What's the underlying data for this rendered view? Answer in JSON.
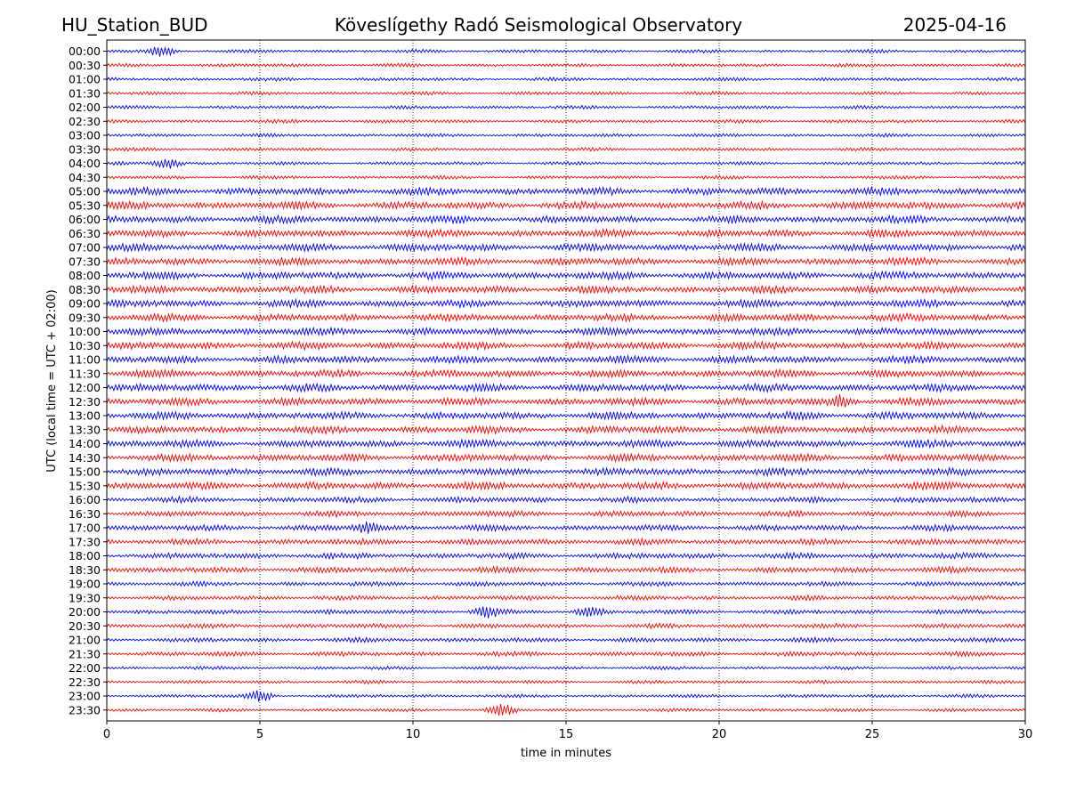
{
  "header": {
    "station": "HU_Station_BUD",
    "title": "Köveslígethy Radó Seismological Observatory",
    "date": "2025-04-16"
  },
  "chart_data": {
    "type": "line",
    "title": "Köveslígethy Radó Seismological Observatory",
    "xlabel": "time in minutes",
    "ylabel": "UTC (local time = UTC + 02:00)",
    "xlim": [
      0,
      30
    ],
    "xticks": [
      "0",
      "5",
      "10",
      "15",
      "20",
      "25",
      "30"
    ],
    "grid": "vertical dotted at 5-minute intervals",
    "rows": [
      "00:00",
      "00:30",
      "01:00",
      "01:30",
      "02:00",
      "02:30",
      "03:00",
      "03:30",
      "04:00",
      "04:30",
      "05:00",
      "05:30",
      "06:00",
      "06:30",
      "07:00",
      "07:30",
      "08:00",
      "08:30",
      "09:00",
      "09:30",
      "10:00",
      "10:30",
      "11:00",
      "11:30",
      "12:00",
      "12:30",
      "13:00",
      "13:30",
      "14:00",
      "14:30",
      "15:00",
      "15:30",
      "16:00",
      "16:30",
      "17:00",
      "17:30",
      "18:00",
      "18:30",
      "19:00",
      "19:30",
      "20:00",
      "20:30",
      "21:00",
      "21:30",
      "22:00",
      "22:30",
      "23:00",
      "23:30"
    ],
    "row_colors": [
      "#0000ff",
      "#ff0000"
    ],
    "events": [
      {
        "row": "00:00",
        "minute": 1.8
      },
      {
        "row": "04:00",
        "minute": 2.0
      },
      {
        "row": "12:30",
        "minute": 24.0
      },
      {
        "row": "17:00",
        "minute": 8.5
      },
      {
        "row": "20:00",
        "minute": 12.4
      },
      {
        "row": "20:00",
        "minute": 15.8
      },
      {
        "row": "23:00",
        "minute": 5.0
      },
      {
        "row": "23:30",
        "minute": 12.9
      }
    ]
  }
}
